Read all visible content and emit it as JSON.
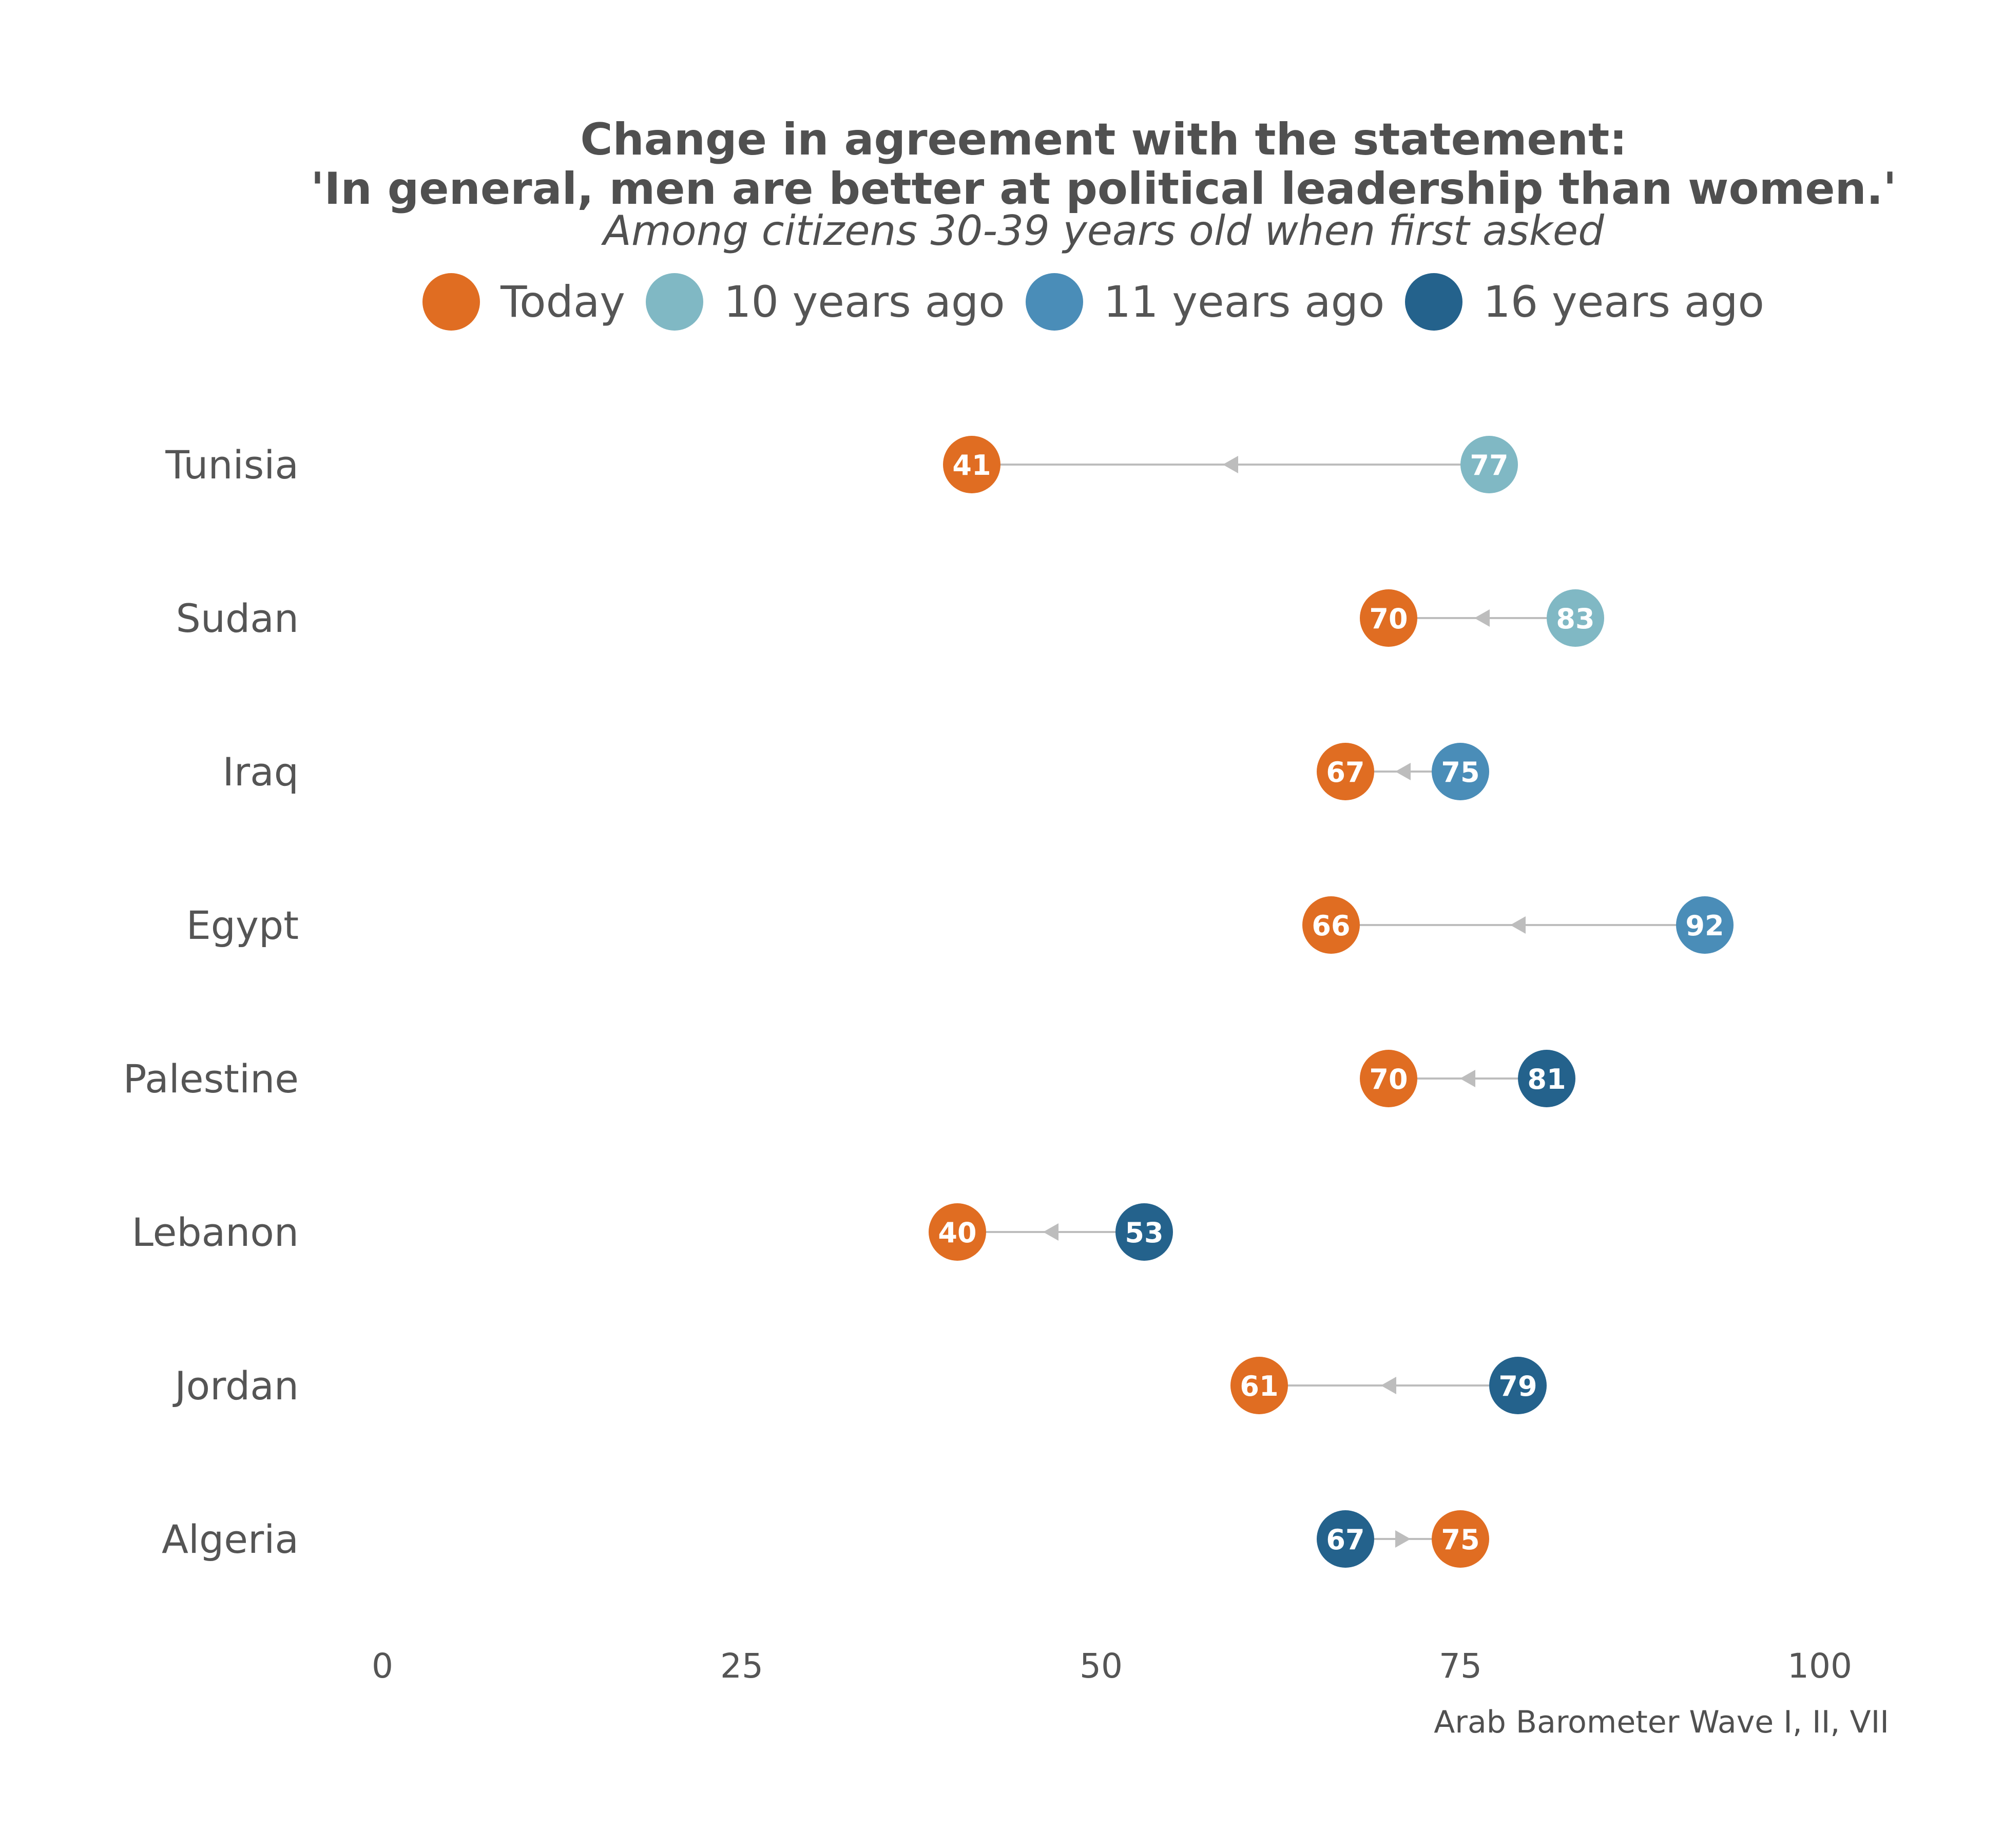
{
  "chart_data": {
    "type": "dot-arrow",
    "title": "Change in agreement with the statement:",
    "title_line2": "'In general, men are better at political leadership than women.'",
    "subtitle": "Among citizens 30-39 years old when first asked",
    "caption": "Arab Barometer Wave I, II, VII",
    "xlim": [
      0,
      100
    ],
    "xticks": [
      0,
      25,
      50,
      75,
      100
    ],
    "legend": [
      {
        "label": "Today",
        "color": "#e06d22"
      },
      {
        "label": "10 years ago",
        "color": "#80b8c4"
      },
      {
        "label": "11 years ago",
        "color": "#4a8db8"
      },
      {
        "label": "16 years ago",
        "color": "#24628c"
      }
    ],
    "rows": [
      {
        "country": "Tunisia",
        "today": 41,
        "past": 77,
        "past_label": "10 years ago"
      },
      {
        "country": "Sudan",
        "today": 70,
        "past": 83,
        "past_label": "10 years ago"
      },
      {
        "country": "Iraq",
        "today": 67,
        "past": 75,
        "past_label": "11 years ago"
      },
      {
        "country": "Egypt",
        "today": 66,
        "past": 92,
        "past_label": "11 years ago"
      },
      {
        "country": "Palestine",
        "today": 70,
        "past": 81,
        "past_label": "16 years ago"
      },
      {
        "country": "Lebanon",
        "today": 40,
        "past": 53,
        "past_label": "16 years ago"
      },
      {
        "country": "Jordan",
        "today": 61,
        "past": 79,
        "past_label": "16 years ago"
      },
      {
        "country": "Algeria",
        "today": 75,
        "past": 67,
        "past_label": "16 years ago"
      }
    ]
  }
}
